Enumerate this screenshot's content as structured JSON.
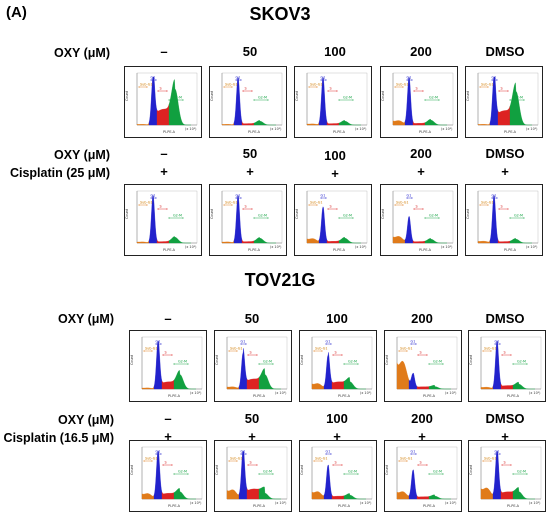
{
  "figure_label": "(A)",
  "section_titles": [
    "SKOV3",
    "TOV21G"
  ],
  "row_labels": {
    "oxy": "OXY (μM)",
    "cisplatin_skov3": "Cisplatin (25 μM)",
    "cisplatin_tov21g": "Cisplatin (16.5 μM)"
  },
  "column_headers": [
    "–",
    "50",
    "100",
    "200",
    "DMSO"
  ],
  "cisplatin_mark": "+",
  "panel_text": {
    "y_axis": "Count",
    "x_axis": "PI-PE-A",
    "x_unit": "(x 10³)",
    "gate_subg1": "Sub-G1",
    "gate_g1": "G1",
    "gate_s": "S",
    "gate_g2m": "G2-M"
  },
  "colors": {
    "subg1": "#e07b1a",
    "g1": "#2222cc",
    "s": "#dd2222",
    "g2m": "#11a040"
  },
  "panel_grid": {
    "skov3_oxy": [
      {
        "treatment": "–",
        "subg1": 0.02,
        "g1": 1.0,
        "s": 0.55,
        "g2m": 0.75
      },
      {
        "treatment": "50",
        "subg1": 0.02,
        "g1": 1.0,
        "s": 0.05,
        "g2m": 0.08
      },
      {
        "treatment": "100",
        "subg1": 0.03,
        "g1": 1.0,
        "s": 0.05,
        "g2m": 0.08
      },
      {
        "treatment": "200",
        "subg1": 0.12,
        "g1": 1.0,
        "s": 0.06,
        "g2m": 0.1
      },
      {
        "treatment": "DMSO",
        "subg1": 0.02,
        "g1": 1.0,
        "s": 0.5,
        "g2m": 0.7
      }
    ],
    "skov3_cis": [
      {
        "treatment": "–",
        "subg1": 0.03,
        "g1": 1.0,
        "s": 0.05,
        "g2m": 0.12
      },
      {
        "treatment": "50",
        "subg1": 0.03,
        "g1": 1.0,
        "s": 0.05,
        "g2m": 0.1
      },
      {
        "treatment": "100",
        "subg1": 0.12,
        "g1": 0.75,
        "s": 0.06,
        "g2m": 0.1
      },
      {
        "treatment": "200",
        "subg1": 0.18,
        "g1": 0.55,
        "s": 0.05,
        "g2m": 0.08
      },
      {
        "treatment": "DMSO",
        "subg1": 0.05,
        "g1": 1.0,
        "s": 0.05,
        "g2m": 0.08
      }
    ],
    "tov21g_oxy": [
      {
        "treatment": "–",
        "subg1": 0.03,
        "g1": 1.0,
        "s": 0.25,
        "g2m": 0.3
      },
      {
        "treatment": "50",
        "subg1": 0.06,
        "g1": 0.75,
        "s": 0.35,
        "g2m": 0.3
      },
      {
        "treatment": "100",
        "subg1": 0.15,
        "g1": 0.7,
        "s": 0.25,
        "g2m": 0.15
      },
      {
        "treatment": "200",
        "subg1": 0.75,
        "g1": 0.3,
        "s": 0.08,
        "g2m": 0.05
      },
      {
        "treatment": "DMSO",
        "subg1": 0.05,
        "g1": 1.0,
        "s": 0.12,
        "g2m": 0.1
      }
    ],
    "tov21g_cis": [
      {
        "treatment": "–",
        "subg1": 0.15,
        "g1": 1.0,
        "s": 0.2,
        "g2m": 0.15
      },
      {
        "treatment": "50",
        "subg1": 0.25,
        "g1": 1.0,
        "s": 0.35,
        "g2m": 0.12
      },
      {
        "treatment": "100",
        "subg1": 0.2,
        "g1": 0.7,
        "s": 0.1,
        "g2m": 0.08
      },
      {
        "treatment": "200",
        "subg1": 0.2,
        "g1": 0.6,
        "s": 0.08,
        "g2m": 0.06
      },
      {
        "treatment": "DMSO",
        "subg1": 0.3,
        "g1": 1.0,
        "s": 0.25,
        "g2m": 0.15
      }
    ]
  }
}
